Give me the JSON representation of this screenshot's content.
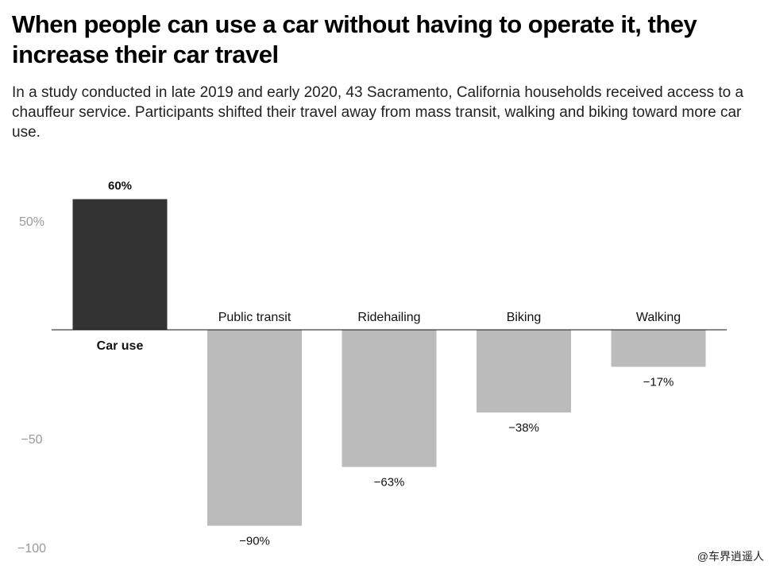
{
  "title": "When people can use a car without having to operate it, they increase their car travel",
  "subtitle": "In a study conducted in late 2019 and early 2020, 43 Sacramento, California households received access to a chauffeur service. Participants shifted their travel away from mass transit, walking and biking toward more car use.",
  "watermark": "@车界逍遥人",
  "chart_data": {
    "type": "bar",
    "categories": [
      "Car use",
      "Public transit",
      "Ridehailing",
      "Biking",
      "Walking"
    ],
    "values": [
      60,
      -90,
      -63,
      -38,
      -17
    ],
    "data_labels": [
      "60%",
      "−90%",
      "−63%",
      "−38%",
      "−17%"
    ],
    "y_ticks": [
      50,
      -50,
      -100
    ],
    "y_tick_labels": [
      "50%",
      "−50",
      "−100"
    ],
    "ylim": [
      -100,
      60
    ],
    "colors": {
      "highlight": "#333333",
      "default": "#bbbbbb",
      "axis": "#111111",
      "tick_text": "#999999"
    },
    "grid": false,
    "legend": "none"
  }
}
